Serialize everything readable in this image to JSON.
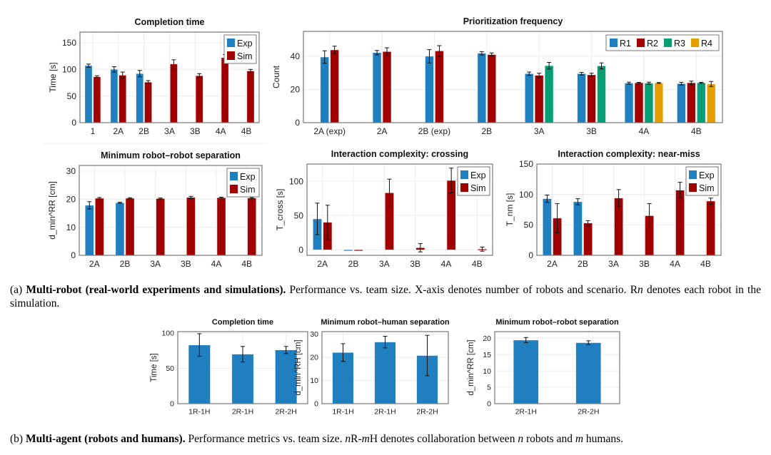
{
  "colors": {
    "Exp": "#1f7fbf",
    "Sim": "#a00000",
    "R1": "#1f7fbf",
    "R2": "#a00000",
    "R3": "#079e73",
    "R4": "#e69f00"
  },
  "chart_data": [
    {
      "type": "bar",
      "title": "Completion time",
      "ylabel": "Time [s]",
      "ylim": [
        0,
        170
      ],
      "yticks": [
        0,
        50,
        100,
        150
      ],
      "categories": [
        "1",
        "2A",
        "2B",
        "3A",
        "3B",
        "4A",
        "4B"
      ],
      "legend": "top-right",
      "series": [
        {
          "name": "Exp",
          "values": [
            107,
            100,
            92,
            null,
            null,
            null,
            null
          ],
          "errors": [
            3,
            5,
            6,
            null,
            null,
            null,
            null
          ]
        },
        {
          "name": "Sim",
          "values": [
            86,
            89,
            76,
            110,
            88,
            122,
            97
          ],
          "errors": [
            2,
            6,
            3,
            8,
            4,
            6,
            3
          ]
        }
      ]
    },
    {
      "type": "bar",
      "title": "Prioritization frequency",
      "ylabel": "Count",
      "ylim": [
        0,
        55
      ],
      "yticks": [
        0,
        20,
        40
      ],
      "categories": [
        "2A (exp)",
        "2A",
        "2B (exp)",
        "2B",
        "3A",
        "3B",
        "4A",
        "4B"
      ],
      "legend": "top-right",
      "series": [
        {
          "name": "R1",
          "values": [
            39.5,
            42.2,
            40,
            41.8,
            29.5,
            29.5,
            23.8,
            23.5
          ],
          "errors": [
            3.8,
            1.3,
            4,
            1,
            1,
            0.8,
            0.6,
            0.8
          ]
        },
        {
          "name": "R2",
          "values": [
            43.8,
            42.8,
            43.2,
            41,
            28.5,
            28.8,
            24,
            24
          ],
          "errors": [
            2.3,
            2.3,
            3.2,
            1,
            1.3,
            1,
            0.3,
            1
          ]
        },
        {
          "name": "R3",
          "values": [
            null,
            null,
            null,
            null,
            34.3,
            34.2,
            23.8,
            24
          ],
          "errors": [
            null,
            null,
            null,
            null,
            2,
            1.8,
            0.6,
            0.3
          ]
        },
        {
          "name": "R4",
          "values": [
            null,
            null,
            null,
            null,
            null,
            null,
            23.9,
            23.3
          ],
          "errors": [
            null,
            null,
            null,
            null,
            null,
            null,
            0.3,
            1.5
          ]
        }
      ]
    },
    {
      "type": "bar",
      "title": "Minimum robot–robot separation",
      "ylabel": "d_min^RR [cm]",
      "ylim": [
        0,
        32
      ],
      "yticks": [
        0,
        10,
        20,
        30
      ],
      "categories": [
        "2A",
        "2B",
        "3A",
        "3B",
        "4A",
        "4B"
      ],
      "legend": "top-right",
      "series": [
        {
          "name": "Exp",
          "values": [
            17.8,
            18.7,
            null,
            null,
            null,
            null
          ],
          "errors": [
            1.3,
            0.2,
            null,
            null,
            null,
            null
          ]
        },
        {
          "name": "Sim",
          "values": [
            20.3,
            20.3,
            20.2,
            20.6,
            20.5,
            20.4
          ],
          "errors": [
            0.3,
            0.2,
            0.2,
            0.4,
            0.2,
            0.2
          ]
        }
      ]
    },
    {
      "type": "bar",
      "title": "Interaction complexity: crossing",
      "ylabel": "T_cross [s]",
      "ylim": [
        -8,
        125
      ],
      "yticks": [
        0,
        50,
        100
      ],
      "categories": [
        "2A",
        "2B",
        "3A",
        "3B",
        "4A",
        "4B"
      ],
      "legend": "top-right",
      "series": [
        {
          "name": "Exp",
          "values": [
            45,
            0,
            null,
            null,
            null,
            null
          ],
          "errors": [
            23,
            0,
            null,
            null,
            null,
            null
          ]
        },
        {
          "name": "Sim",
          "values": [
            40,
            0,
            83,
            3,
            101,
            1
          ],
          "errors": [
            25,
            0,
            20,
            6,
            18,
            3
          ]
        }
      ]
    },
    {
      "type": "bar",
      "title": "Interaction complexity: near-miss",
      "ylabel": "T_nm [s]",
      "ylim": [
        0,
        150
      ],
      "yticks": [
        0,
        50,
        100,
        150
      ],
      "categories": [
        "2A",
        "2B",
        "3A",
        "3B",
        "4A",
        "4B"
      ],
      "legend": "top-right",
      "series": [
        {
          "name": "Exp",
          "values": [
            93,
            88,
            null,
            null,
            null,
            null
          ],
          "errors": [
            6,
            5,
            null,
            null,
            null,
            null
          ]
        },
        {
          "name": "Sim",
          "values": [
            61,
            53,
            94,
            65,
            107,
            89
          ],
          "errors": [
            24,
            4,
            14,
            20,
            13,
            5
          ]
        }
      ]
    },
    {
      "type": "bar",
      "title": "Completion time",
      "ylabel": "Time [s]",
      "ylim": [
        0,
        102
      ],
      "yticks": [
        0,
        50,
        100
      ],
      "categories": [
        "1R-1H",
        "2R-1H",
        "2R-2H"
      ],
      "legend": "none",
      "series": [
        {
          "name": "Exp",
          "values": [
            83,
            70,
            76
          ],
          "errors": [
            16,
            11,
            5
          ]
        }
      ]
    },
    {
      "type": "bar",
      "title": "Minimum robot–human separation",
      "ylabel": "d_min^RH [cm]",
      "ylim": [
        0,
        31
      ],
      "yticks": [
        0,
        10,
        20,
        30
      ],
      "categories": [
        "1R-1H",
        "2R-1H",
        "2R-2H"
      ],
      "legend": "none",
      "series": [
        {
          "name": "Exp",
          "values": [
            22,
            26.5,
            20.7
          ],
          "errors": [
            3.8,
            2.5,
            8.7
          ]
        }
      ]
    },
    {
      "type": "bar",
      "title": "Minimum robot–robot separation",
      "ylabel": "d_min^RR [cm]",
      "ylim": [
        0,
        22
      ],
      "yticks": [
        0,
        5,
        10,
        15,
        20
      ],
      "categories": [
        "2R-1H",
        "2R-2H"
      ],
      "legend": "none",
      "series": [
        {
          "name": "Exp",
          "values": [
            19.4,
            18.6
          ],
          "errors": [
            0.8,
            0.6
          ]
        }
      ]
    }
  ],
  "captions": {
    "a": {
      "label": "(a) ",
      "bold": "Multi-robot (real-world experiments and simulations).",
      "text": " Performance vs. team size. X-axis denotes number of robots and scenario. R",
      "italic": "n",
      "text2": " denotes each robot in the simulation."
    },
    "b": {
      "label": "(b) ",
      "bold": "Multi-agent (robots and humans).",
      "text": " Performance metrics vs. team size. ",
      "n": "n",
      "r": "R-",
      "m": "m",
      "text2": "H denotes collaboration between ",
      "n2": "n",
      "text3": " robots and ",
      "m2": "m",
      "text4": " humans."
    }
  }
}
